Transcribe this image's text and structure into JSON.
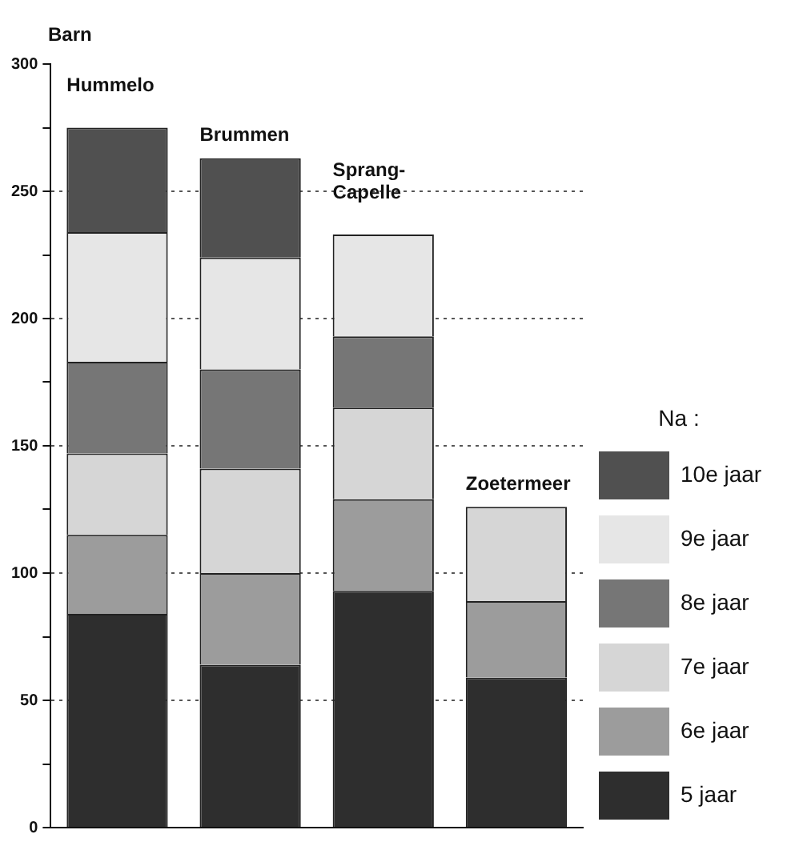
{
  "chart_data": {
    "type": "bar",
    "stacked": true,
    "ylabel": "Barn",
    "legend_title": "Na :",
    "legend": "right",
    "tick_labels": "y",
    "grid": "y",
    "categories": [
      "Hummelo",
      "Brummen",
      "Sprang-Capelle",
      "Zoetermeer"
    ],
    "ylim": [
      0,
      300
    ],
    "yticks": [
      0,
      {
        "value": 25,
        "label": null
      },
      50,
      {
        "value": 75,
        "label": null
      },
      100,
      {
        "value": 125,
        "label": null
      },
      150,
      {
        "value": 175,
        "label": null
      },
      200,
      {
        "value": 225,
        "label": null
      },
      250,
      {
        "value": 275,
        "label": null
      },
      300
    ],
    "series": [
      {
        "name": "5 jaar",
        "color": "#2e2e2e",
        "values": [
          84,
          64,
          93,
          59
        ]
      },
      {
        "name": "6e jaar",
        "color": "#9c9c9c",
        "values": [
          31,
          36,
          36,
          30
        ]
      },
      {
        "name": "7e jaar",
        "color": "#d6d6d6",
        "values": [
          32,
          41,
          36,
          37
        ]
      },
      {
        "name": "8e jaar",
        "color": "#767676",
        "values": [
          36,
          39,
          28,
          null
        ]
      },
      {
        "name": "9e jaar",
        "color": "#e6e6e6",
        "values": [
          51,
          44,
          40,
          null
        ]
      },
      {
        "name": "10e jaar",
        "color": "#505050",
        "values": [
          41,
          39,
          null,
          null
        ]
      }
    ]
  }
}
